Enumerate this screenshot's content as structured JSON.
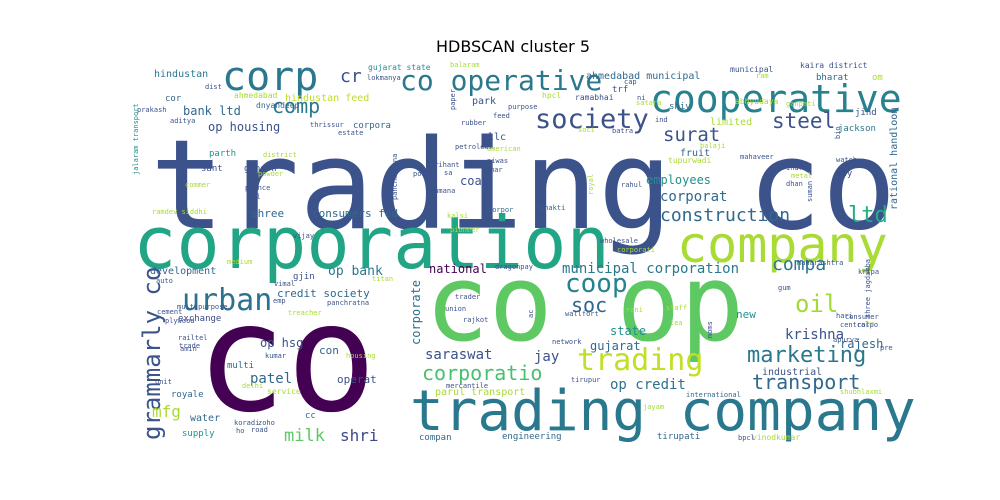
{
  "chart_data": {
    "type": "wordcloud",
    "title": "HDBSCAN cluster 5",
    "words": [
      {
        "text": "trading co",
        "weight": 1.0,
        "color": "#3b528b"
      },
      {
        "text": "co",
        "weight": 0.98,
        "color": "#440154"
      },
      {
        "text": "co op",
        "weight": 0.95,
        "color": "#5ec962"
      },
      {
        "text": "corporation",
        "weight": 0.78,
        "color": "#21a585"
      },
      {
        "text": "trading company",
        "weight": 0.58,
        "color": "#2a788e"
      },
      {
        "text": "company",
        "weight": 0.5,
        "color": "#a8db34"
      },
      {
        "text": "corp",
        "weight": 0.4,
        "color": "#2a788e"
      },
      {
        "text": "cooperative",
        "weight": 0.38,
        "color": "#26828e"
      },
      {
        "text": "co operative",
        "weight": 0.3,
        "color": "#2a788e"
      },
      {
        "text": "trading",
        "weight": 0.3,
        "color": "#c0df25"
      },
      {
        "text": "urban",
        "weight": 0.3,
        "color": "#2c728e"
      },
      {
        "text": "society",
        "weight": 0.28,
        "color": "#3b528b"
      },
      {
        "text": "coop",
        "weight": 0.27,
        "color": "#26828e"
      },
      {
        "text": "grammarly co",
        "weight": 0.25,
        "color": "#3b528b"
      },
      {
        "text": "oil",
        "weight": 0.25,
        "color": "#a2da37"
      },
      {
        "text": "marketing",
        "weight": 0.24,
        "color": "#2a788e"
      },
      {
        "text": "ltd",
        "weight": 0.22,
        "color": "#26ad81"
      },
      {
        "text": "steel",
        "weight": 0.21,
        "color": "#3b528b"
      },
      {
        "text": "comp",
        "weight": 0.2,
        "color": "#2a788e"
      },
      {
        "text": "soc",
        "weight": 0.2,
        "color": "#31678e"
      },
      {
        "text": "transport",
        "weight": 0.2,
        "color": "#31688e"
      },
      {
        "text": "corporatio",
        "weight": 0.2,
        "color": "#48c16e"
      },
      {
        "text": "construction",
        "weight": 0.19,
        "color": "#31688e"
      },
      {
        "text": "surat",
        "weight": 0.19,
        "color": "#3b528b"
      },
      {
        "text": "compa",
        "weight": 0.18,
        "color": "#2a788e"
      },
      {
        "text": "cr",
        "weight": 0.18,
        "color": "#3b528b"
      },
      {
        "text": "milk",
        "weight": 0.17,
        "color": "#5ec962"
      },
      {
        "text": "shri",
        "weight": 0.17,
        "color": "#3e4989"
      },
      {
        "text": "mfg",
        "weight": 0.16,
        "color": "#a8db34"
      },
      {
        "text": "municipal corporation",
        "weight": 0.15,
        "color": "#2a788e"
      },
      {
        "text": "saraswat",
        "weight": 0.14,
        "color": "#3b528b"
      },
      {
        "text": "corporat",
        "weight": 0.14,
        "color": "#31688e"
      },
      {
        "text": "jay",
        "weight": 0.14,
        "color": "#3b528b"
      },
      {
        "text": "patel",
        "weight": 0.14,
        "color": "#31688e"
      },
      {
        "text": "krishna",
        "weight": 0.14,
        "color": "#3b528b"
      },
      {
        "text": "op credit",
        "weight": 0.14,
        "color": "#2c728e"
      },
      {
        "text": "op bank",
        "weight": 0.13,
        "color": "#2a788e"
      },
      {
        "text": "bank ltd",
        "weight": 0.12,
        "color": "#31688e"
      },
      {
        "text": "op housing",
        "weight": 0.12,
        "color": "#3b528b"
      },
      {
        "text": "employees",
        "weight": 0.12,
        "color": "#21918c"
      },
      {
        "text": "national",
        "weight": 0.12,
        "color": "#440154"
      },
      {
        "text": "state",
        "weight": 0.12,
        "color": "#21918c"
      },
      {
        "text": "gujarat",
        "weight": 0.12,
        "color": "#31688e"
      },
      {
        "text": "rajesh",
        "weight": 0.12,
        "color": "#31688e"
      },
      {
        "text": "corporate",
        "weight": 0.12,
        "color": "#2c728e"
      },
      {
        "text": "coal",
        "weight": 0.12,
        "color": "#3b528b"
      },
      {
        "text": "op hsg",
        "weight": 0.12,
        "color": "#3b528b"
      },
      {
        "text": "operat",
        "weight": 0.11,
        "color": "#3b528b"
      },
      {
        "text": "con",
        "weight": 0.11,
        "color": "#31688e"
      },
      {
        "text": "new",
        "weight": 0.11,
        "color": "#21918c"
      },
      {
        "text": "consumers fed",
        "weight": 0.11,
        "color": "#31688e"
      },
      {
        "text": "credit society",
        "weight": 0.11,
        "color": "#31688e"
      },
      {
        "text": "shree",
        "weight": 0.11,
        "color": "#31688e"
      },
      {
        "text": "industrial",
        "weight": 0.1,
        "color": "#3b528b"
      },
      {
        "text": "parul transport",
        "weight": 0.1,
        "color": "#a8db34"
      },
      {
        "text": "rational handloom",
        "weight": 0.1,
        "color": "#31688e"
      },
      {
        "text": "hindustan",
        "weight": 0.1,
        "color": "#2a788e"
      },
      {
        "text": "hindustan feed",
        "weight": 0.1,
        "color": "#bddf26"
      },
      {
        "text": "ahmedabad municipal",
        "weight": 0.1,
        "color": "#31688e"
      },
      {
        "text": "park",
        "weight": 0.1,
        "color": "#3b528b"
      },
      {
        "text": "llc",
        "weight": 0.1,
        "color": "#3b528b"
      },
      {
        "text": "limited",
        "weight": 0.1,
        "color": "#a8db34"
      },
      {
        "text": "fruit",
        "weight": 0.1,
        "color": "#31688e"
      },
      {
        "text": "development",
        "weight": 0.1,
        "color": "#31688e"
      },
      {
        "text": "water",
        "weight": 0.1,
        "color": "#31688e"
      },
      {
        "text": "multi",
        "weight": 0.09,
        "color": "#31688e"
      },
      {
        "text": "sty",
        "weight": 0.09,
        "color": "#3e4989"
      },
      {
        "text": "ganesh",
        "weight": 0.09,
        "color": "#3b528b"
      },
      {
        "text": "sant",
        "weight": 0.09,
        "color": "#3b528b"
      },
      {
        "text": "parth",
        "weight": 0.09,
        "color": "#21918c"
      },
      {
        "text": "exchange",
        "weight": 0.09,
        "color": "#3e4989"
      },
      {
        "text": "gjin",
        "weight": 0.09,
        "color": "#3b528b"
      },
      {
        "text": "corpora",
        "weight": 0.09,
        "color": "#31688e"
      },
      {
        "text": "cor",
        "weight": 0.09,
        "color": "#31688e"
      },
      {
        "text": "bharat",
        "weight": 0.09,
        "color": "#31688e"
      },
      {
        "text": "shiv",
        "weight": 0.09,
        "color": "#31688e"
      },
      {
        "text": "engineering",
        "weight": 0.09,
        "color": "#31688e"
      },
      {
        "text": "royale",
        "weight": 0.09,
        "color": "#31688e"
      },
      {
        "text": "supply",
        "weight": 0.09,
        "color": "#21918c"
      },
      {
        "text": "compan",
        "weight": 0.09,
        "color": "#31688e"
      },
      {
        "text": "tirupati",
        "weight": 0.09,
        "color": "#31688e"
      },
      {
        "text": "trf",
        "weight": 0.09,
        "color": "#3b528b"
      },
      {
        "text": "jackson",
        "weight": 0.09,
        "color": "#2a788e"
      },
      {
        "text": "jind",
        "weight": 0.09,
        "color": "#3b528b"
      },
      {
        "text": "om",
        "weight": 0.09,
        "color": "#a8db34"
      },
      {
        "text": "cc",
        "weight": 0.09,
        "color": "#31688e"
      },
      {
        "text": "hpcl",
        "weight": 0.08,
        "color": "#a8db34"
      },
      {
        "text": "service",
        "weight": 0.08,
        "color": "#a8db34"
      },
      {
        "text": "vinodkumar",
        "weight": 0.08,
        "color": "#a8db34"
      },
      {
        "text": "ahmedabad",
        "weight": 0.08,
        "color": "#a8db34"
      },
      {
        "text": "dnyandeep",
        "weight": 0.08,
        "color": "#31688e"
      },
      {
        "text": "gujarat state",
        "weight": 0.08,
        "color": "#21918c"
      },
      {
        "text": "kaira district",
        "weight": 0.08,
        "color": "#3b528b"
      },
      {
        "text": "municipal",
        "weight": 0.08,
        "color": "#3b528b"
      },
      {
        "text": "ramabhai",
        "weight": 0.08,
        "color": "#3b528b"
      },
      {
        "text": "tupurwadi",
        "weight": 0.08,
        "color": "#a8db34"
      },
      {
        "text": "abhyudaya",
        "weight": 0.08,
        "color": "#a8db34"
      },
      {
        "text": "maharashtra",
        "weight": 0.07,
        "color": "#3b528b"
      },
      {
        "text": "shree jagdamba",
        "weight": 0.07,
        "color": "#3b528b"
      },
      {
        "text": "dragonpay",
        "weight": 0.07,
        "color": "#3b528b"
      },
      {
        "text": "international",
        "weight": 0.07,
        "color": "#31688e"
      },
      {
        "text": "shakti",
        "weight": 0.07,
        "color": "#31688e"
      },
      {
        "text": "corpor",
        "weight": 0.07,
        "color": "#31688e"
      },
      {
        "text": "multipurpose",
        "weight": 0.07,
        "color": "#3b528b"
      },
      {
        "text": "panchratna",
        "weight": 0.07,
        "color": "#3b528b"
      },
      {
        "text": "district",
        "weight": 0.07,
        "color": "#a8db34"
      },
      {
        "text": "corporati",
        "weight": 0.07,
        "color": "#a8db34"
      },
      {
        "text": "ramdev siddhi",
        "weight": 0.07,
        "color": "#a8db34"
      },
      {
        "text": "consumer",
        "weight": 0.07,
        "color": "#3b528b"
      },
      {
        "text": "mercantile",
        "weight": 0.07,
        "color": "#3b528b"
      },
      {
        "text": "jalaram transport",
        "weight": 0.06,
        "color": "#21918c"
      },
      {
        "text": "metal",
        "weight": 0.06,
        "color": "#a8db34"
      },
      {
        "text": "dist",
        "weight": 0.06,
        "color": "#3b528b"
      },
      {
        "text": "thrissur",
        "weight": 0.06,
        "color": "#3b528b"
      },
      {
        "text": "dhan",
        "weight": 0.06,
        "color": "#3b528b"
      },
      {
        "text": "trader",
        "weight": 0.06,
        "color": "#3b528b"
      },
      {
        "text": "rajkot",
        "weight": 0.06,
        "color": "#3b528b"
      },
      {
        "text": "union",
        "weight": 0.06,
        "color": "#3b528b"
      },
      {
        "text": "tr",
        "weight": 0.06,
        "color": "#3b528b"
      },
      {
        "text": "tea",
        "weight": 0.06,
        "color": "#a8db34"
      },
      {
        "text": "feed",
        "weight": 0.06,
        "color": "#3b528b"
      },
      {
        "text": "cap",
        "weight": 0.06,
        "color": "#3b528b"
      },
      {
        "text": "ni",
        "weight": 0.06,
        "color": "#3b528b"
      },
      {
        "text": "ram",
        "weight": 0.06,
        "color": "#a8db34"
      },
      {
        "text": "sumana",
        "weight": 0.05,
        "color": "#3b528b"
      },
      {
        "text": "niwas",
        "weight": 0.05,
        "color": "#3b528b"
      },
      {
        "text": "mar",
        "weight": 0.05,
        "color": "#3b528b"
      },
      {
        "text": "prince",
        "weight": 0.05,
        "color": "#3b528b"
      },
      {
        "text": "col",
        "weight": 0.05,
        "color": "#3b528b"
      },
      {
        "text": "powder",
        "weight": 0.05,
        "color": "#a8db34"
      },
      {
        "text": "pooja",
        "weight": 0.05,
        "color": "#3b528b"
      },
      {
        "text": "arihant",
        "weight": 0.05,
        "color": "#3b528b"
      },
      {
        "text": "balaji",
        "weight": 0.05,
        "color": "#a8db34"
      },
      {
        "text": "rahul",
        "weight": 0.05,
        "color": "#3b528b"
      },
      {
        "text": "watch",
        "weight": 0.05,
        "color": "#3b528b"
      },
      {
        "text": "mahaveer",
        "weight": 0.05,
        "color": "#3b528b"
      },
      {
        "text": "indra",
        "weight": 0.05,
        "color": "#3b528b"
      },
      {
        "text": "wholesale",
        "weight": 0.05,
        "color": "#3b528b"
      },
      {
        "text": "pioneer",
        "weight": 0.05,
        "color": "#a8db34"
      },
      {
        "text": "kalsi",
        "weight": 0.05,
        "color": "#a8db34"
      },
      {
        "text": "vijay",
        "weight": 0.05,
        "color": "#3b528b"
      },
      {
        "text": "vimal",
        "weight": 0.05,
        "color": "#3b528b"
      },
      {
        "text": "emp",
        "weight": 0.05,
        "color": "#3b528b"
      },
      {
        "text": "auto",
        "weight": 0.05,
        "color": "#3b528b"
      },
      {
        "text": "kripa",
        "weight": 0.05,
        "color": "#3b528b"
      },
      {
        "text": "hari",
        "weight": 0.05,
        "color": "#3b528b"
      },
      {
        "text": "central",
        "weight": 0.05,
        "color": "#3b528b"
      },
      {
        "text": "gum",
        "weight": 0.05,
        "color": "#3b528b"
      },
      {
        "text": "staff",
        "weight": 0.05,
        "color": "#a8db34"
      },
      {
        "text": "rani",
        "weight": 0.05,
        "color": "#a8db34"
      },
      {
        "text": "wallfort",
        "weight": 0.05,
        "color": "#3b528b"
      },
      {
        "text": "network",
        "weight": 0.05,
        "color": "#3b528b"
      },
      {
        "text": "tirupur",
        "weight": 0.05,
        "color": "#3b528b"
      },
      {
        "text": "apurva",
        "weight": 0.05,
        "color": "#3b528b"
      },
      {
        "text": "corpo",
        "weight": 0.05,
        "color": "#3b528b"
      },
      {
        "text": "shubhlaxmi",
        "weight": 0.05,
        "color": "#a8db34"
      },
      {
        "text": "jayam",
        "weight": 0.05,
        "color": "#a8db34"
      },
      {
        "text": "bpcl",
        "weight": 0.05,
        "color": "#3b528b"
      },
      {
        "text": "koradi",
        "weight": 0.05,
        "color": "#3b528b"
      },
      {
        "text": "zoho",
        "weight": 0.05,
        "color": "#3b528b"
      },
      {
        "text": "road",
        "weight": 0.05,
        "color": "#3b528b"
      },
      {
        "text": "amin",
        "weight": 0.05,
        "color": "#3b528b"
      },
      {
        "text": "trade",
        "weight": 0.05,
        "color": "#3b528b"
      },
      {
        "text": "cement",
        "weight": 0.05,
        "color": "#3b528b"
      },
      {
        "text": "plywood",
        "weight": 0.05,
        "color": "#3b528b"
      },
      {
        "text": "railtel",
        "weight": 0.05,
        "color": "#3b528b"
      },
      {
        "text": "treacher",
        "weight": 0.05,
        "color": "#a8db34"
      },
      {
        "text": "titan",
        "weight": 0.05,
        "color": "#a8db34"
      },
      {
        "text": "kumar",
        "weight": 0.05,
        "color": "#3b528b"
      },
      {
        "text": "delhi",
        "weight": 0.05,
        "color": "#a8db34"
      },
      {
        "text": "unit",
        "weight": 0.05,
        "color": "#3b528b"
      },
      {
        "text": "ho",
        "weight": 0.05,
        "color": "#3b528b"
      },
      {
        "text": "housing",
        "weight": 0.05,
        "color": "#a8db34"
      },
      {
        "text": "lokmanya",
        "weight": 0.05,
        "color": "#3b528b"
      },
      {
        "text": "balaram",
        "weight": 0.05,
        "color": "#a8db34"
      },
      {
        "text": "prakash",
        "weight": 0.05,
        "color": "#3b528b"
      },
      {
        "text": "aditya",
        "weight": 0.05,
        "color": "#3b528b"
      },
      {
        "text": "petroleum",
        "weight": 0.05,
        "color": "#3b528b"
      },
      {
        "text": "rubber",
        "weight": 0.05,
        "color": "#3b528b"
      },
      {
        "text": "estate",
        "weight": 0.05,
        "color": "#3b528b"
      },
      {
        "text": "american",
        "weight": 0.05,
        "color": "#a8db34"
      },
      {
        "text": "soci",
        "weight": 0.05,
        "color": "#a8db34"
      },
      {
        "text": "batra",
        "weight": 0.05,
        "color": "#3b528b"
      },
      {
        "text": "ind",
        "weight": 0.05,
        "color": "#3b528b"
      },
      {
        "text": "satara",
        "weight": 0.05,
        "color": "#a8db34"
      },
      {
        "text": "ganpati",
        "weight": 0.05,
        "color": "#a8db34"
      },
      {
        "text": "purpose",
        "weight": 0.05,
        "color": "#3b528b"
      },
      {
        "text": "paper",
        "weight": 0.05,
        "color": "#3b528b"
      },
      {
        "text": "commer",
        "weight": 0.05,
        "color": "#a8db34"
      },
      {
        "text": "medium",
        "weight": 0.05,
        "color": "#a8db34"
      },
      {
        "text": "moms",
        "weight": 0.05,
        "color": "#3b528b"
      },
      {
        "text": "ac",
        "weight": 0.05,
        "color": "#3b528b"
      },
      {
        "text": "pre",
        "weight": 0.05,
        "color": "#3b528b"
      },
      {
        "text": "ta",
        "weight": 0.05,
        "color": "#a8db34"
      },
      {
        "text": "sa",
        "weight": 0.05,
        "color": "#3b528b"
      },
      {
        "text": "royal",
        "weight": 0.05,
        "color": "#a8db34"
      },
      {
        "text": "suman",
        "weight": 0.05,
        "color": "#3b528b"
      },
      {
        "text": "pancharatna",
        "weight": 0.05,
        "color": "#3b528b"
      },
      {
        "text": "bio",
        "weight": 0.05,
        "color": "#3b528b"
      }
    ]
  }
}
